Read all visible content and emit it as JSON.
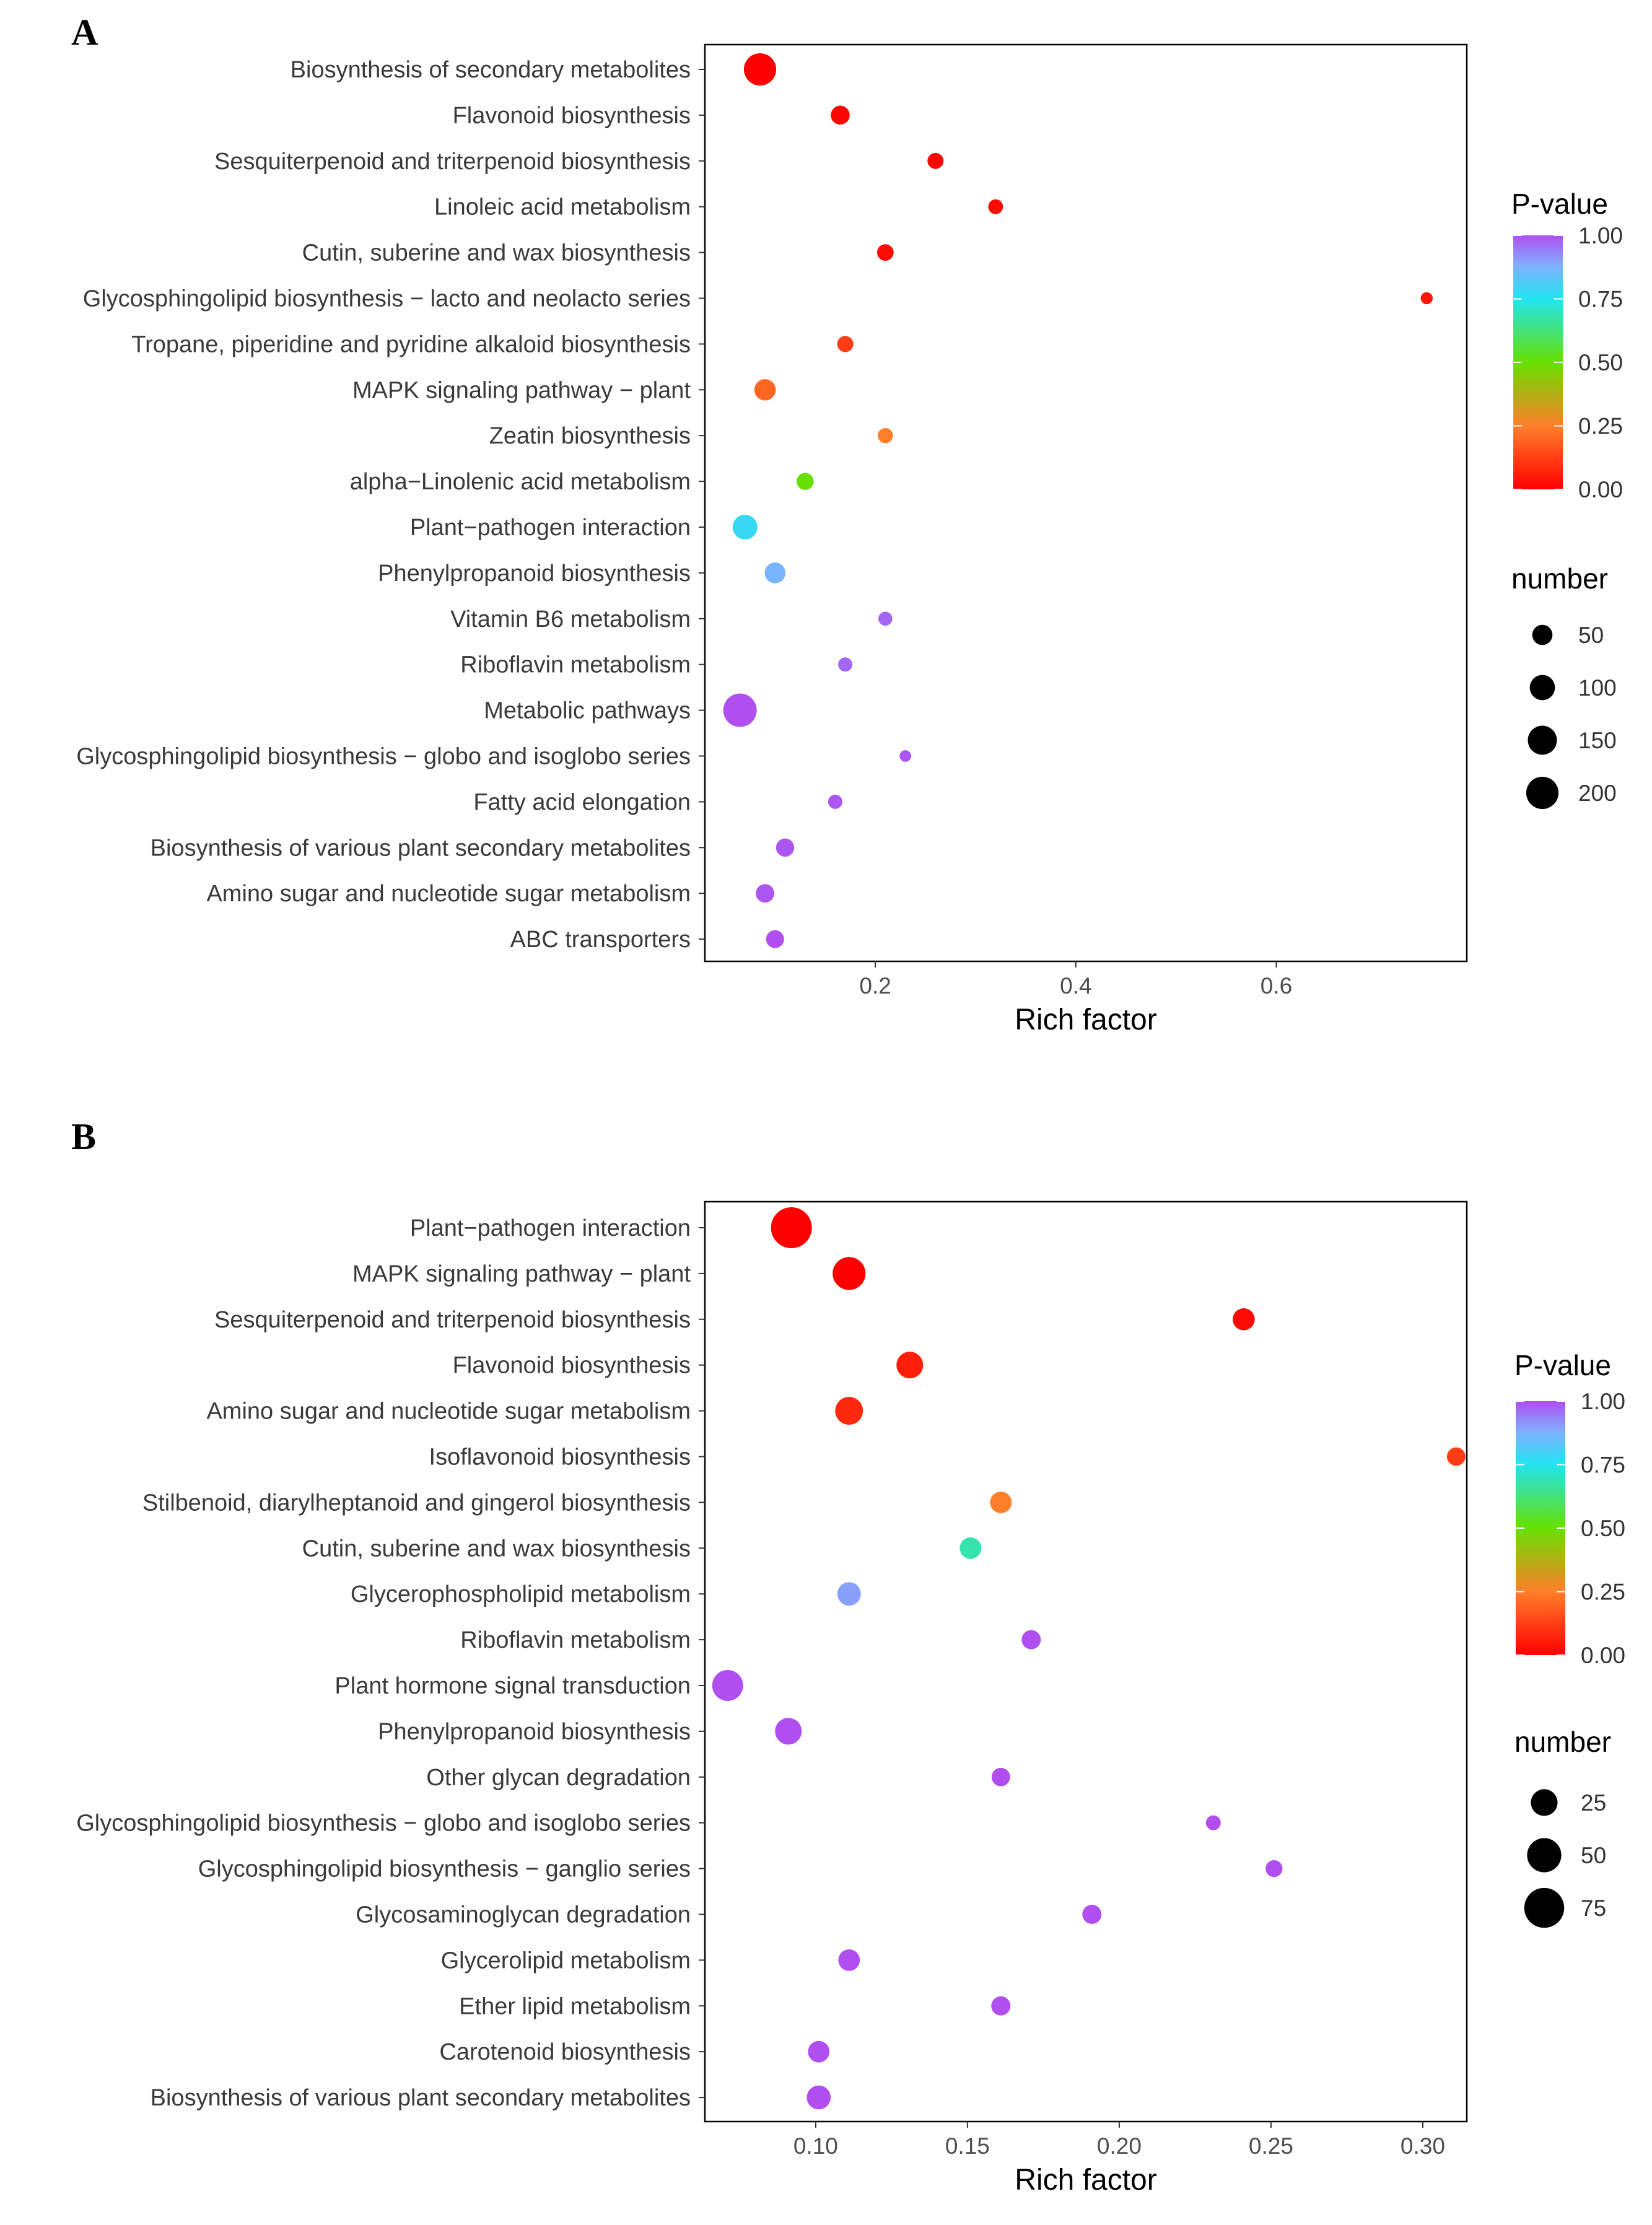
{
  "panels": [
    {
      "label": "A",
      "legend": {
        "color_title": "P-value",
        "color_ticks": [
          "1.00",
          "0.75",
          "0.50",
          "0.25",
          "0.00"
        ],
        "size_title": "number",
        "size_ticks": [
          "50",
          "100",
          "150",
          "200"
        ]
      }
    },
    {
      "label": "B",
      "legend": {
        "color_title": "P-value",
        "color_ticks": [
          "1.00",
          "0.75",
          "0.50",
          "0.25",
          "0.00"
        ],
        "size_title": "number",
        "size_ticks": [
          "25",
          "50",
          "75"
        ]
      }
    }
  ],
  "colors": {
    "gradient": [
      "#ff0000",
      "#ff7f2a",
      "#66e000",
      "#22e4f0",
      "#7fb0ff",
      "#b04ef0"
    ],
    "point_axis": "#000000",
    "frame": "#000000"
  },
  "chart_data": [
    {
      "type": "scatter",
      "title": "A",
      "xlabel": "Rich factor",
      "ylabel": "",
      "xlim": [
        0.03,
        0.79
      ],
      "xticks": [
        0.2,
        0.4,
        0.6
      ],
      "xtick_labels": [
        "0.2",
        "0.4",
        "0.6"
      ],
      "size_legend_values": [
        50,
        100,
        150,
        200
      ],
      "size_range": [
        3,
        220
      ],
      "color_scale": "P-value (0 = red, 1 = purple)",
      "points": [
        {
          "name": "Biosynthesis of secondary metabolites",
          "rich_factor": 0.085,
          "number": 200,
          "pvalue": 0.0
        },
        {
          "name": "Flavonoid biosynthesis",
          "rich_factor": 0.165,
          "number": 40,
          "pvalue": 0.01
        },
        {
          "name": "Sesquiterpenoid and triterpenoid biosynthesis",
          "rich_factor": 0.26,
          "number": 22,
          "pvalue": 0.01
        },
        {
          "name": "Linoleic acid metabolism",
          "rich_factor": 0.32,
          "number": 16,
          "pvalue": 0.02
        },
        {
          "name": "Cutin, suberine and wax biosynthesis",
          "rich_factor": 0.21,
          "number": 25,
          "pvalue": 0.02
        },
        {
          "name": "Glycosphingolipid biosynthesis − lacto and neolacto series",
          "rich_factor": 0.75,
          "number": 7,
          "pvalue": 0.05
        },
        {
          "name": "Tropane, piperidine and pyridine alkaloid biosynthesis",
          "rich_factor": 0.17,
          "number": 23,
          "pvalue": 0.12
        },
        {
          "name": "MAPK signaling pathway − plant",
          "rich_factor": 0.09,
          "number": 60,
          "pvalue": 0.2
        },
        {
          "name": "Zeatin biosynthesis",
          "rich_factor": 0.21,
          "number": 18,
          "pvalue": 0.25
        },
        {
          "name": "alpha−Linolenic acid metabolism",
          "rich_factor": 0.13,
          "number": 28,
          "pvalue": 0.5
        },
        {
          "name": "Plant−pathogen interaction",
          "rich_factor": 0.07,
          "number": 95,
          "pvalue": 0.78
        },
        {
          "name": "Phenylpropanoid biosynthesis",
          "rich_factor": 0.1,
          "number": 55,
          "pvalue": 0.87
        },
        {
          "name": "Vitamin B6 metabolism",
          "rich_factor": 0.21,
          "number": 13,
          "pvalue": 0.97
        },
        {
          "name": "Riboflavin metabolism",
          "rich_factor": 0.17,
          "number": 14,
          "pvalue": 0.97
        },
        {
          "name": "Metabolic pathways",
          "rich_factor": 0.065,
          "number": 225,
          "pvalue": 1.0
        },
        {
          "name": "Glycosphingolipid biosynthesis − globo and isoglobo series",
          "rich_factor": 0.23,
          "number": 6,
          "pvalue": 0.99
        },
        {
          "name": "Fatty acid elongation",
          "rich_factor": 0.16,
          "number": 14,
          "pvalue": 0.99
        },
        {
          "name": "Biosynthesis of various plant secondary metabolites",
          "rich_factor": 0.11,
          "number": 35,
          "pvalue": 0.99
        },
        {
          "name": "Amino sugar and nucleotide sugar metabolism",
          "rich_factor": 0.09,
          "number": 37,
          "pvalue": 0.99
        },
        {
          "name": "ABC transporters",
          "rich_factor": 0.1,
          "number": 33,
          "pvalue": 1.0
        }
      ]
    },
    {
      "type": "scatter",
      "title": "B",
      "xlabel": "Rich factor",
      "ylabel": "",
      "xlim": [
        0.0635,
        0.3145
      ],
      "xticks": [
        0.1,
        0.15,
        0.2,
        0.25,
        0.3
      ],
      "xtick_labels": [
        "0.10",
        "0.15",
        "0.20",
        "0.25",
        "0.30"
      ],
      "size_legend_values": [
        25,
        50,
        75
      ],
      "size_range": [
        2,
        80
      ],
      "color_scale": "P-value (0 = red, 1 = purple)",
      "points": [
        {
          "name": "Plant−pathogen interaction",
          "rich_factor": 0.092,
          "number": 80,
          "pvalue": 0.0
        },
        {
          "name": "MAPK signaling pathway − plant",
          "rich_factor": 0.111,
          "number": 45,
          "pvalue": 0.0
        },
        {
          "name": "Sesquiterpenoid and triterpenoid biosynthesis",
          "rich_factor": 0.241,
          "number": 14,
          "pvalue": 0.02
        },
        {
          "name": "Flavonoid biosynthesis",
          "rich_factor": 0.131,
          "number": 25,
          "pvalue": 0.06
        },
        {
          "name": "Amino sugar and nucleotide sugar metabolism",
          "rich_factor": 0.111,
          "number": 28,
          "pvalue": 0.08
        },
        {
          "name": "Isoflavonoid biosynthesis",
          "rich_factor": 0.311,
          "number": 8,
          "pvalue": 0.12
        },
        {
          "name": "Stilbenoid, diarylheptanoid and gingerol biosynthesis",
          "rich_factor": 0.161,
          "number": 13,
          "pvalue": 0.25
        },
        {
          "name": "Cutin, suberine and wax biosynthesis",
          "rich_factor": 0.151,
          "number": 13,
          "pvalue": 0.68
        },
        {
          "name": "Glycerophospholipid metabolism",
          "rich_factor": 0.111,
          "number": 17,
          "pvalue": 0.9
        },
        {
          "name": "Riboflavin metabolism",
          "rich_factor": 0.171,
          "number": 9,
          "pvalue": 1.0
        },
        {
          "name": "Plant hormone signal transduction",
          "rich_factor": 0.071,
          "number": 38,
          "pvalue": 1.0
        },
        {
          "name": "Phenylpropanoid biosynthesis",
          "rich_factor": 0.091,
          "number": 25,
          "pvalue": 1.0
        },
        {
          "name": "Other glycan degradation",
          "rich_factor": 0.161,
          "number": 8,
          "pvalue": 1.0
        },
        {
          "name": "Glycosphingolipid biosynthesis − globo and isoglobo series",
          "rich_factor": 0.231,
          "number": 4,
          "pvalue": 1.0
        },
        {
          "name": "Glycosphingolipid biosynthesis − ganglio series",
          "rich_factor": 0.251,
          "number": 6,
          "pvalue": 1.0
        },
        {
          "name": "Glycosaminoglycan degradation",
          "rich_factor": 0.191,
          "number": 9,
          "pvalue": 1.0
        },
        {
          "name": "Glycerolipid metabolism",
          "rich_factor": 0.111,
          "number": 13,
          "pvalue": 1.0
        },
        {
          "name": "Ether lipid metabolism",
          "rich_factor": 0.161,
          "number": 9,
          "pvalue": 1.0
        },
        {
          "name": "Carotenoid biosynthesis",
          "rich_factor": 0.101,
          "number": 13,
          "pvalue": 1.0
        },
        {
          "name": "Biosynthesis of various plant secondary metabolites",
          "rich_factor": 0.101,
          "number": 18,
          "pvalue": 1.0
        }
      ]
    }
  ]
}
